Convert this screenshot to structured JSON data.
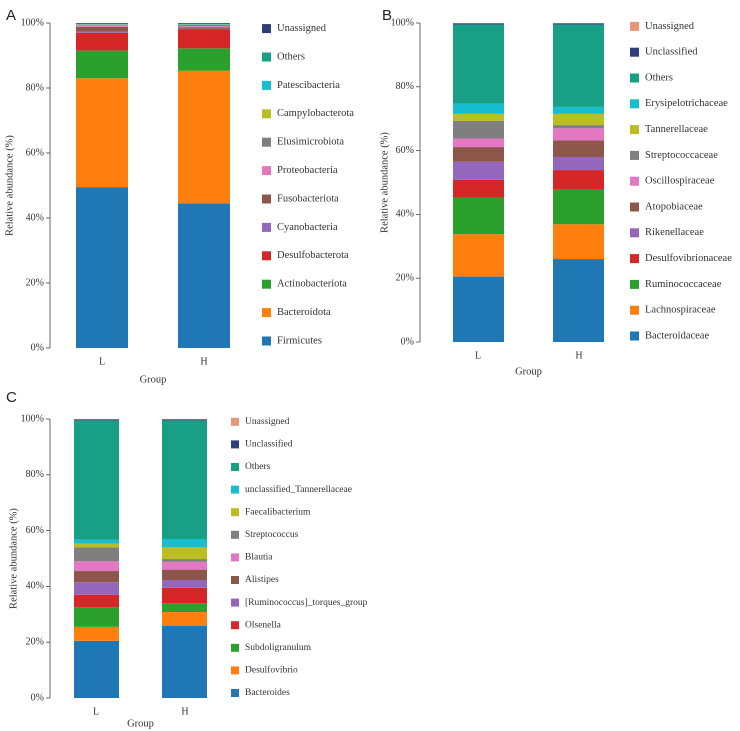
{
  "figure": {
    "colors": {
      "Firmicutes": "#1f77b4",
      "Bacteroidota": "#ff7f0e",
      "Actinobacteriota": "#2ca02c",
      "Desulfobacterota": "#d62728",
      "Cyanobacteria": "#9467bd",
      "Fusobacteriota": "#8c564b",
      "Proteobacteria": "#e377c2",
      "Elusimicrobiota": "#7f7f7f",
      "Campylobacterota": "#bcbd22",
      "Patescibacteria": "#17becf",
      "Others": "#17a085",
      "Unassigned": "#2f3e7a",
      "Unclassified": "#2f3e7a",
      "UnassignedB": "#e8967a"
    }
  },
  "chart_data": [
    {
      "panel": "A",
      "type": "bar",
      "stacked": true,
      "xlabel": "Group",
      "ylabel": "Relative abundance (%)",
      "ylim": [
        0,
        100
      ],
      "yticks": [
        "0%",
        "20%",
        "40%",
        "60%",
        "80%",
        "100%"
      ],
      "categories": [
        "L",
        "H"
      ],
      "series": [
        {
          "name": "Firmicutes",
          "color": "#1f77b4",
          "values": [
            49.5,
            44.5
          ]
        },
        {
          "name": "Bacteroidota",
          "color": "#ff7f0e",
          "values": [
            33.5,
            40.8
          ]
        },
        {
          "name": "Actinobacteriota",
          "color": "#2ca02c",
          "values": [
            8.5,
            6.9
          ]
        },
        {
          "name": "Desulfobacterota",
          "color": "#d62728",
          "values": [
            5.5,
            5.8
          ]
        },
        {
          "name": "Cyanobacteria",
          "color": "#9467bd",
          "values": [
            0.3,
            0.2
          ]
        },
        {
          "name": "Fusobacteriota",
          "color": "#8c564b",
          "values": [
            1.5,
            0.5
          ]
        },
        {
          "name": "Proteobacteria",
          "color": "#e377c2",
          "values": [
            0.5,
            0.3
          ]
        },
        {
          "name": "Elusimicrobiota",
          "color": "#7f7f7f",
          "values": [
            0.2,
            0.4
          ]
        },
        {
          "name": "Campylobacterota",
          "color": "#bcbd22",
          "values": [
            0.1,
            0.1
          ]
        },
        {
          "name": "Patescibacteria",
          "color": "#17becf",
          "values": [
            0.1,
            0.1
          ]
        },
        {
          "name": "Others",
          "color": "#17a085",
          "values": [
            0.1,
            0.2
          ]
        },
        {
          "name": "Unassigned",
          "color": "#2f3e7a",
          "values": [
            0.2,
            0.2
          ]
        }
      ]
    },
    {
      "panel": "B",
      "type": "bar",
      "stacked": true,
      "xlabel": "Group",
      "ylabel": "Relative abundance (%)",
      "ylim": [
        0,
        100
      ],
      "yticks": [
        "0%",
        "20%",
        "40%",
        "60%",
        "80%",
        "100%"
      ],
      "categories": [
        "L",
        "H"
      ],
      "series": [
        {
          "name": "Bacteroidaceae",
          "color": "#1f77b4",
          "values": [
            20.5,
            26.0
          ]
        },
        {
          "name": "Lachnospiraceae",
          "color": "#ff7f0e",
          "values": [
            13.3,
            10.9
          ]
        },
        {
          "name": "Ruminococcaceae",
          "color": "#2ca02c",
          "values": [
            11.5,
            10.8
          ]
        },
        {
          "name": "Desulfovibrionaceae",
          "color": "#d62728",
          "values": [
            5.5,
            6.2
          ]
        },
        {
          "name": "Rikenellaceae",
          "color": "#9467bd",
          "values": [
            5.7,
            4.1
          ]
        },
        {
          "name": "Atopobiaceae",
          "color": "#8c564b",
          "values": [
            4.6,
            5.2
          ]
        },
        {
          "name": "Oscillospiraceae",
          "color": "#e377c2",
          "values": [
            2.7,
            3.8
          ]
        },
        {
          "name": "Streptococcaceae",
          "color": "#7f7f7f",
          "values": [
            5.5,
            1.0
          ]
        },
        {
          "name": "Tannerellaceae",
          "color": "#bcbd22",
          "values": [
            2.2,
            3.5
          ]
        },
        {
          "name": "Erysipelotrichaceae",
          "color": "#17becf",
          "values": [
            3.2,
            2.2
          ]
        },
        {
          "name": "Others",
          "color": "#17a085",
          "values": [
            24.8,
            25.8
          ]
        },
        {
          "name": "Unclassified",
          "color": "#2f3e7a",
          "values": [
            0.4,
            0.4
          ]
        },
        {
          "name": "Unassigned",
          "color": "#e8967a",
          "values": [
            0.1,
            0.1
          ]
        }
      ]
    },
    {
      "panel": "C",
      "type": "bar",
      "stacked": true,
      "xlabel": "Group",
      "ylabel": "Relative abundance (%)",
      "ylim": [
        0,
        100
      ],
      "yticks": [
        "0%",
        "20%",
        "40%",
        "60%",
        "80%",
        "100%"
      ],
      "categories": [
        "L",
        "H"
      ],
      "series": [
        {
          "name": "Bacteroides",
          "color": "#1f77b4",
          "values": [
            20.5,
            25.8
          ]
        },
        {
          "name": "Desulfovibrio",
          "color": "#ff7f0e",
          "values": [
            5.0,
            5.0
          ]
        },
        {
          "name": "Subdoligranulum",
          "color": "#2ca02c",
          "values": [
            7.0,
            3.2
          ]
        },
        {
          "name": "Olsenella",
          "color": "#d62728",
          "values": [
            4.5,
            5.5
          ]
        },
        {
          "name": "[Ruminococcus]_torques_group",
          "color": "#9467bd",
          "values": [
            4.5,
            2.8
          ]
        },
        {
          "name": "Alistipes",
          "color": "#8c564b",
          "values": [
            4.0,
            3.7
          ]
        },
        {
          "name": "Blautia",
          "color": "#e377c2",
          "values": [
            3.5,
            2.8
          ]
        },
        {
          "name": "Streptococcus",
          "color": "#7f7f7f",
          "values": [
            5.0,
            1.0
          ]
        },
        {
          "name": "Faecalibacterium",
          "color": "#bcbd22",
          "values": [
            1.3,
            4.2
          ]
        },
        {
          "name": "unclassified_Tannerellaceae",
          "color": "#17becf",
          "values": [
            1.4,
            3.0
          ]
        },
        {
          "name": "Others",
          "color": "#17a085",
          "values": [
            42.8,
            42.5
          ]
        },
        {
          "name": "Unclassified",
          "color": "#2f3e7a",
          "values": [
            0.4,
            0.4
          ]
        },
        {
          "name": "Unassigned",
          "color": "#e8967a",
          "values": [
            0.1,
            0.1
          ]
        }
      ]
    }
  ]
}
